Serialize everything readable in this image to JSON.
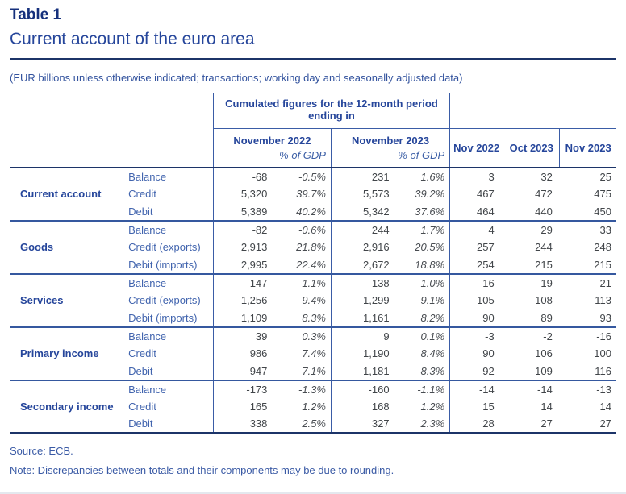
{
  "page": {
    "table_label": "Table 1",
    "title": "Current account of the euro area",
    "meta_note": "(EUR billions unless otherwise indicated; transactions; working day and seasonally adjusted data)",
    "source": "Source: ECB.",
    "footnote": "Note: Discrepancies between totals and their components may be due to rounding."
  },
  "colors": {
    "navy_dark": "#1c3468",
    "navy_heading": "#26469b",
    "blue_label": "#4164ae",
    "border_blue": "#3a5ca6",
    "number_gray": "#414549"
  },
  "table": {
    "group_header": "Cumulated figures for the 12-month period ending in",
    "period_columns": [
      {
        "label": "November 2022",
        "sub": "% of GDP"
      },
      {
        "label": "November 2023",
        "sub": "% of GDP"
      }
    ],
    "month_columns": [
      "Nov 2022",
      "Oct 2023",
      "Nov 2023"
    ],
    "sections": [
      {
        "label": "Current account",
        "rows": [
          {
            "label": "Balance",
            "values": [
              "-68",
              "-0.5%",
              "231",
              "1.6%",
              "3",
              "32",
              "25"
            ]
          },
          {
            "label": "Credit",
            "values": [
              "5,320",
              "39.7%",
              "5,573",
              "39.2%",
              "467",
              "472",
              "475"
            ]
          },
          {
            "label": "Debit",
            "values": [
              "5,389",
              "40.2%",
              "5,342",
              "37.6%",
              "464",
              "440",
              "450"
            ]
          }
        ]
      },
      {
        "label": "Goods",
        "rows": [
          {
            "label": "Balance",
            "values": [
              "-82",
              "-0.6%",
              "244",
              "1.7%",
              "4",
              "29",
              "33"
            ]
          },
          {
            "label": "Credit (exports)",
            "values": [
              "2,913",
              "21.8%",
              "2,916",
              "20.5%",
              "257",
              "244",
              "248"
            ]
          },
          {
            "label": "Debit (imports)",
            "values": [
              "2,995",
              "22.4%",
              "2,672",
              "18.8%",
              "254",
              "215",
              "215"
            ]
          }
        ]
      },
      {
        "label": "Services",
        "rows": [
          {
            "label": "Balance",
            "values": [
              "147",
              "1.1%",
              "138",
              "1.0%",
              "16",
              "19",
              "21"
            ]
          },
          {
            "label": "Credit (exports)",
            "values": [
              "1,256",
              "9.4%",
              "1,299",
              "9.1%",
              "105",
              "108",
              "113"
            ]
          },
          {
            "label": "Debit (imports)",
            "values": [
              "1,109",
              "8.3%",
              "1,161",
              "8.2%",
              "90",
              "89",
              "93"
            ]
          }
        ]
      },
      {
        "label": "Primary income",
        "rows": [
          {
            "label": "Balance",
            "values": [
              "39",
              "0.3%",
              "9",
              "0.1%",
              "-3",
              "-2",
              "-16"
            ]
          },
          {
            "label": "Credit",
            "values": [
              "986",
              "7.4%",
              "1,190",
              "8.4%",
              "90",
              "106",
              "100"
            ]
          },
          {
            "label": "Debit",
            "values": [
              "947",
              "7.1%",
              "1,181",
              "8.3%",
              "92",
              "109",
              "116"
            ]
          }
        ]
      },
      {
        "label": "Secondary income",
        "rows": [
          {
            "label": "Balance",
            "values": [
              "-173",
              "-1.3%",
              "-160",
              "-1.1%",
              "-14",
              "-14",
              "-13"
            ]
          },
          {
            "label": "Credit",
            "values": [
              "165",
              "1.2%",
              "168",
              "1.2%",
              "15",
              "14",
              "14"
            ]
          },
          {
            "label": "Debit",
            "values": [
              "338",
              "2.5%",
              "327",
              "2.3%",
              "28",
              "27",
              "27"
            ]
          }
        ]
      }
    ]
  }
}
